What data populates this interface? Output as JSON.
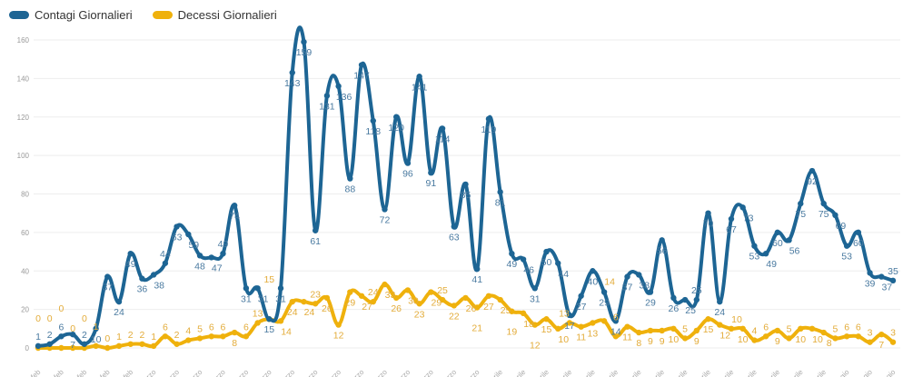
{
  "chart_data": {
    "type": "line",
    "title": "",
    "xlabel": "",
    "ylabel": "",
    "ylim": [
      0,
      160
    ],
    "yticks": [
      0,
      20,
      40,
      60,
      80,
      100,
      120,
      140,
      160
    ],
    "grid": true,
    "legend_position": "top-left",
    "x": [
      "21 feb",
      "22 feb",
      "23 feb",
      "24 feb",
      "25 feb",
      "26 feb",
      "27 feb",
      "28 feb",
      "29 feb",
      "1 marzo",
      "2 marzo",
      "3 marzo",
      "4 marzo",
      "5 marzo",
      "6 marzo",
      "7 marzo",
      "8 marzo",
      "9 marzo",
      "10 marzo",
      "11 marzo",
      "12 marzo",
      "13 marzo",
      "14 marzo",
      "15 marzo",
      "16 marzo",
      "17 marzo",
      "18 marzo",
      "19 marzo",
      "20 marzo",
      "21 marzo",
      "22 marzo",
      "23 marzo",
      "24 marzo",
      "25 marzo",
      "26 marzo",
      "27 marzo",
      "28 marzo",
      "29 marzo",
      "30 marzo",
      "31 marzo",
      "1 aprile",
      "2 aprile",
      "3 aprile",
      "4 aprile",
      "5 aprile",
      "6 aprile",
      "7 aprile",
      "8 aprile",
      "9 aprile",
      "10 aprile",
      "11 aprile",
      "12 aprile",
      "13 aprile",
      "14 aprile",
      "15 aprile",
      "16 aprile",
      "17 aprile",
      "18 aprile",
      "19 aprile",
      "20 aprile",
      "21 aprile",
      "22 aprile",
      "23 aprile",
      "24 aprile",
      "25 aprile",
      "26 aprile",
      "27 aprile",
      "28 aprile",
      "29 aprile",
      "30 aprile",
      "1 maggio",
      "2 maggio",
      "3 maggio",
      "4 maggio",
      "5 maggio"
    ],
    "series": [
      {
        "name": "Contagi Giornalieri",
        "color": "#1d6594",
        "label_color": "#4a7aa0",
        "values": [
          1,
          2,
          6,
          7,
          2,
          10,
          37,
          24,
          49,
          36,
          38,
          44,
          63,
          59,
          48,
          47,
          49,
          74,
          31,
          31,
          15,
          31,
          143,
          159,
          61,
          131,
          136,
          88,
          147,
          118,
          72,
          120,
          96,
          141,
          91,
          114,
          63,
          85,
          41,
          119,
          81,
          49,
          46,
          31,
          50,
          44,
          17,
          27,
          40,
          29,
          14,
          37,
          38,
          29,
          56,
          26,
          25,
          25,
          70,
          24,
          67,
          73,
          53,
          49,
          60,
          56,
          75,
          92,
          75,
          69,
          53,
          60,
          39,
          37,
          35
        ]
      },
      {
        "name": "Decessi Giornalieri",
        "color": "#efb10c",
        "label_color": "#e3ac3a",
        "values": [
          0,
          0,
          0,
          0,
          0,
          1,
          0,
          1,
          2,
          2,
          1,
          6,
          2,
          4,
          5,
          6,
          6,
          8,
          6,
          13,
          15,
          14,
          24,
          24,
          23,
          26,
          12,
          29,
          27,
          24,
          33,
          26,
          30,
          23,
          29,
          25,
          22,
          26,
          21,
          27,
          25,
          19,
          18,
          12,
          15,
          10,
          13,
          11,
          13,
          14,
          6,
          11,
          8,
          9,
          9,
          10,
          5,
          9,
          15,
          12,
          10,
          10,
          4,
          6,
          9,
          5,
          10,
          10,
          8,
          5,
          6,
          6,
          3,
          7,
          3
        ]
      }
    ]
  }
}
